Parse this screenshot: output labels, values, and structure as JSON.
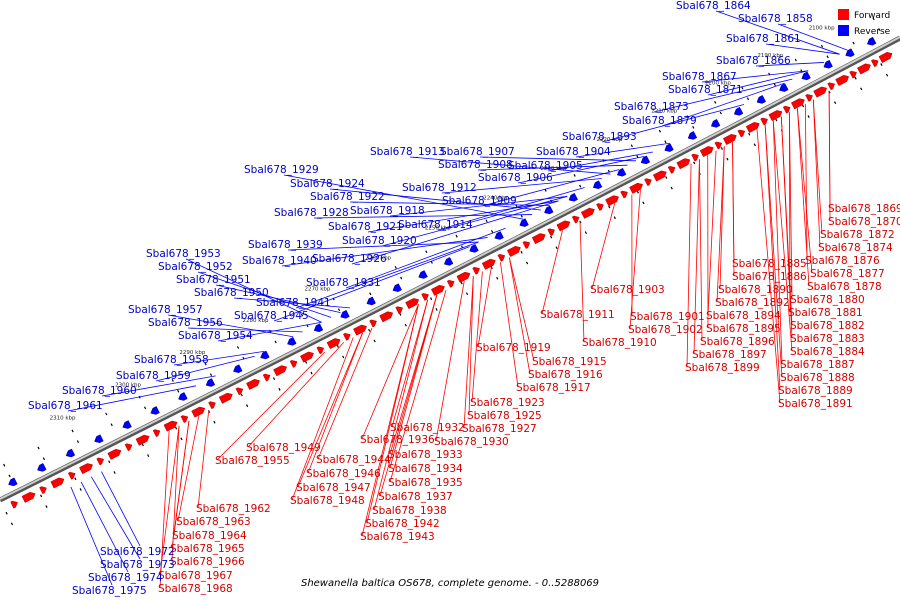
{
  "caption": "Shewanella baltica OS678, complete genome. - 0..5288069",
  "legend": {
    "forward_label": "Forward",
    "reverse_label": "Reverse",
    "forward_color": "#ff0000",
    "reverse_color": "#0000ff"
  },
  "colors": {
    "backbone": "#777777",
    "forward": "#ff0000",
    "reverse": "#0000ff"
  },
  "ticks": [
    "2100 kbp",
    "2190 kbp",
    "2200 kbp",
    "2210 kbp",
    "2220 kbp",
    "2230 kbp",
    "2240 kbp",
    "2250 kbp",
    "2260 kbp",
    "2270 kbp",
    "2280 kbp",
    "2290 kbp",
    "2300 kbp",
    "2310 kbp"
  ],
  "forward_labels": [
    "Sbal678_1869",
    "Sbal678_1870",
    "Sbal678_1872",
    "Sbal678_1874",
    "Sbal678_1876",
    "Sbal678_1877",
    "Sbal678_1878",
    "Sbal678_1880",
    "Sbal678_1881",
    "Sbal678_1882",
    "Sbal678_1883",
    "Sbal678_1884",
    "Sbal678_1887",
    "Sbal678_1888",
    "Sbal678_1889",
    "Sbal678_1891",
    "Sbal678_1885",
    "Sbal678_1886",
    "Sbal678_1890",
    "Sbal678_1892",
    "Sbal678_1894",
    "Sbal678_1895",
    "Sbal678_1896",
    "Sbal678_1897",
    "Sbal678_1899",
    "Sbal678_1903",
    "Sbal678_1901",
    "Sbal678_1902",
    "Sbal678_1911",
    "Sbal678_1910",
    "Sbal678_1919",
    "Sbal678_1915",
    "Sbal678_1916",
    "Sbal678_1917",
    "Sbal678_1923",
    "Sbal678_1925",
    "Sbal678_1927",
    "Sbal678_1930",
    "Sbal678_1932",
    "Sbal678_1936",
    "Sbal678_1933",
    "Sbal678_1934",
    "Sbal678_1935",
    "Sbal678_1937",
    "Sbal678_1938",
    "Sbal678_1942",
    "Sbal678_1943",
    "Sbal678_1949",
    "Sbal678_1955",
    "Sbal678_1944",
    "Sbal678_1946",
    "Sbal678_1947",
    "Sbal678_1948",
    "Sbal678_1962",
    "Sbal678_1963",
    "Sbal678_1964",
    "Sbal678_1965",
    "Sbal678_1966",
    "Sbal678_1967",
    "Sbal678_1968"
  ],
  "reverse_labels": [
    "Sbal678_1864",
    "Sbal678_1858",
    "Sbal678_1861",
    "Sbal678_1866",
    "Sbal678_1867",
    "Sbal678_1871",
    "Sbal678_1873",
    "Sbal678_1879",
    "Sbal678_1893",
    "Sbal678_1913",
    "Sbal678_1907",
    "Sbal678_1904",
    "Sbal678_1908",
    "Sbal678_1905",
    "Sbal678_1906",
    "Sbal678_1912",
    "Sbal678_1909",
    "Sbal678_1929",
    "Sbal678_1924",
    "Sbal678_1922",
    "Sbal678_1928",
    "Sbal678_1918",
    "Sbal678_1921",
    "Sbal678_1914",
    "Sbal678_1920",
    "Sbal678_1926",
    "Sbal678_1939",
    "Sbal678_1940",
    "Sbal678_1931",
    "Sbal678_1941",
    "Sbal678_1945",
    "Sbal678_1953",
    "Sbal678_1952",
    "Sbal678_1951",
    "Sbal678_1950",
    "Sbal678_1957",
    "Sbal678_1956",
    "Sbal678_1954",
    "Sbal678_1958",
    "Sbal678_1959",
    "Sbal678_1960",
    "Sbal678_1961",
    "Sbal678_1972",
    "Sbal678_1973",
    "Sbal678_1974",
    "Sbal678_1975"
  ]
}
